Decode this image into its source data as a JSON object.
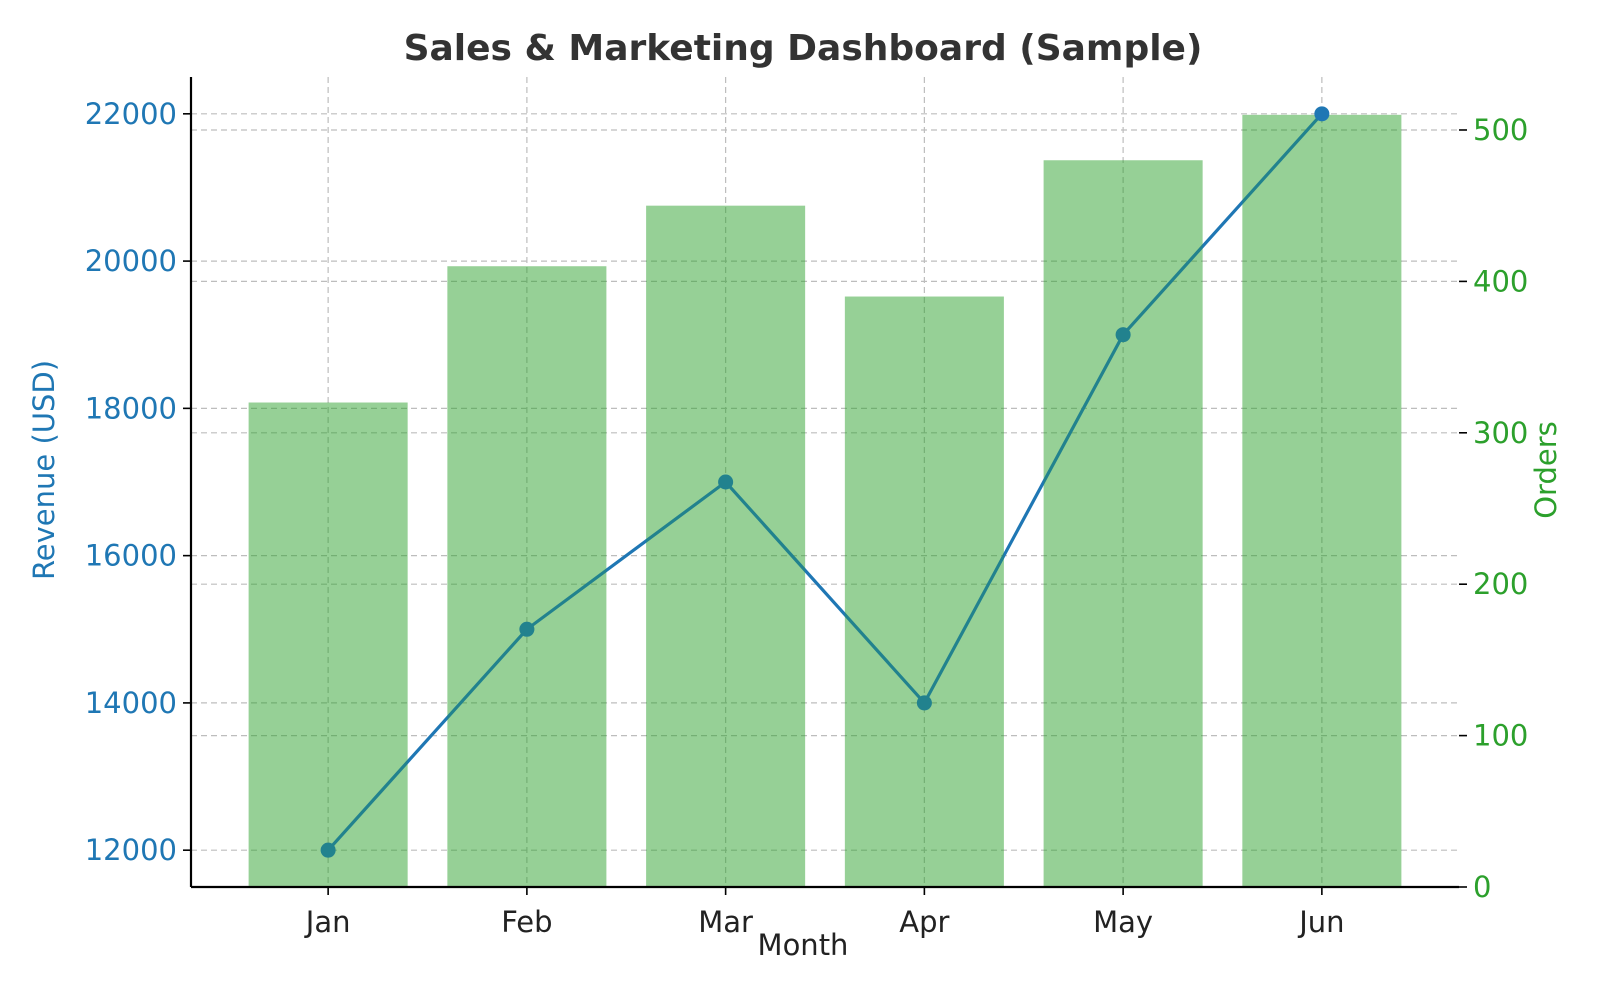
{
  "chart_data": {
    "type": "bar+line",
    "title": "Sales & Marketing Dashboard (Sample)",
    "xlabel": "Month",
    "categories": [
      "Jan",
      "Feb",
      "Mar",
      "Apr",
      "May",
      "Jun"
    ],
    "y_left": {
      "label": "Revenue (USD)",
      "ticks": [
        12000,
        14000,
        16000,
        18000,
        20000,
        22000
      ],
      "range": [
        11500,
        22500
      ],
      "color": "#1f77b4"
    },
    "y_right": {
      "label": "Orders",
      "ticks": [
        0,
        100,
        200,
        300,
        400,
        500
      ],
      "range": [
        0,
        535
      ],
      "color": "#2ca02c"
    },
    "series": [
      {
        "type": "line",
        "axis": "left",
        "values": [
          12000,
          15000,
          17000,
          14000,
          19000,
          22000
        ],
        "color": "#1f77b4"
      },
      {
        "type": "bar",
        "axis": "right",
        "values": [
          320,
          410,
          450,
          390,
          480,
          510
        ],
        "color": "#2ca02c"
      }
    ],
    "grid": true,
    "legend": "none"
  }
}
